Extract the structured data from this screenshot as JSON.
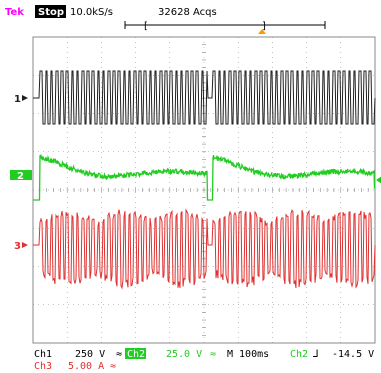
{
  "header": {
    "brand": "Tek",
    "run_state": "Stop",
    "sample_rate": "10.0kS/s",
    "acquisitions": "32628 Acqs"
  },
  "channels": {
    "ch1": {
      "marker": "1",
      "color": "#202020"
    },
    "ch2": {
      "marker": "2",
      "color": "#22cc22"
    },
    "ch3": {
      "marker": "3",
      "color": "#e03030"
    }
  },
  "footer": {
    "ch1_label": "Ch1",
    "ch1_scale": "250 V",
    "ch1_coupling": "≈",
    "ch2_badge": "Ch2",
    "ch2_scale": "25.0 V",
    "ch2_coupling": "≈",
    "timebase": "M 100ms",
    "trigger_source": "Ch2",
    "trigger_slope": "⅃",
    "trigger_level": "-14.5 V",
    "ch3_label": "Ch3",
    "ch3_scale": "5.00 A",
    "ch3_coupling": "≈"
  },
  "colors": {
    "brand": "#ff00ff",
    "grid": "#888888",
    "ch1": "#202020",
    "ch2": "#22cc22",
    "ch3": "#e03030"
  }
}
